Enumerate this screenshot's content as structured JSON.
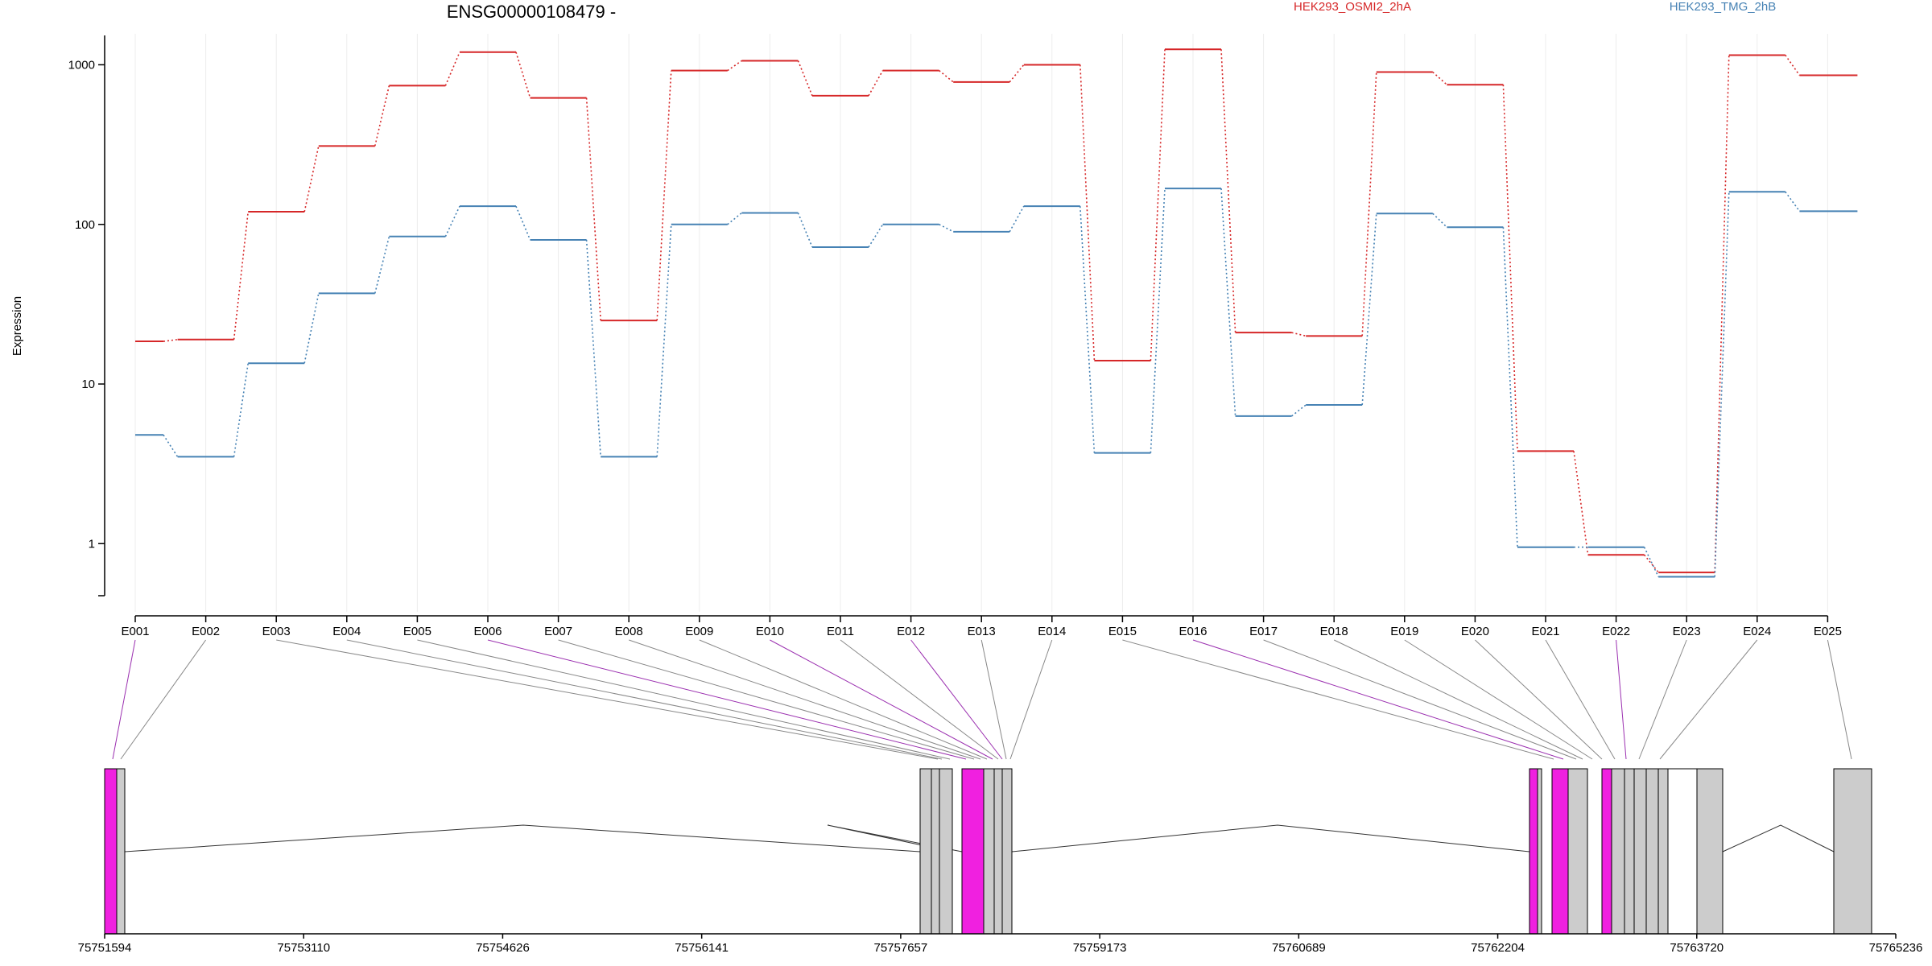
{
  "chart_data": {
    "type": "line",
    "title": "ENSG00000108479 -",
    "xlabel": "",
    "ylabel": "Expression",
    "y_scale": "log",
    "ylim": [
      0.5,
      1600
    ],
    "y_ticks": [
      1,
      10,
      100,
      1000
    ],
    "y_tick_labels": [
      "1",
      "10",
      "100",
      "1000"
    ],
    "grid": "vertical lines at each exon",
    "legend_placement": "top",
    "categories": [
      "E001",
      "E002",
      "E003",
      "E004",
      "E005",
      "E006",
      "E007",
      "E008",
      "E009",
      "E010",
      "E011",
      "E012",
      "E013",
      "E014",
      "E015",
      "E016",
      "E017",
      "E018",
      "E019",
      "E020",
      "E021",
      "E022",
      "E023",
      "E024",
      "E025"
    ],
    "series": [
      {
        "name": "HEK293_OSMI2_2hA",
        "color": "#d62728",
        "values": [
          18.5,
          19,
          120,
          310,
          740,
          1200,
          620,
          25,
          920,
          1060,
          640,
          920,
          780,
          1000,
          14,
          1250,
          21,
          20,
          900,
          750,
          3.8,
          0.85,
          0.66,
          1150,
          860
        ]
      },
      {
        "name": "HEK293_TMG_2hB",
        "color": "#4682b4",
        "values": [
          4.8,
          3.5,
          13.5,
          37,
          84,
          130,
          80,
          3.5,
          100,
          118,
          72,
          100,
          90,
          130,
          3.7,
          168,
          6.3,
          7.4,
          117,
          96,
          0.95,
          0.95,
          0.62,
          160,
          121
        ]
      }
    ],
    "gene_track": {
      "coordinate_ticks": [
        "75751594",
        "75753110",
        "75754626",
        "75756141",
        "75757657",
        "75759173",
        "75760689",
        "75762204",
        "75763720",
        "75765236"
      ],
      "exon_fill_normal": "#cccccc",
      "exon_fill_highlight": "#f020e0",
      "connector_normal": "#888888",
      "connector_highlight": "#9b30b0",
      "highlighted_exons": [
        "E001",
        "E006",
        "E010",
        "E012",
        "E016",
        "E022"
      ]
    }
  }
}
